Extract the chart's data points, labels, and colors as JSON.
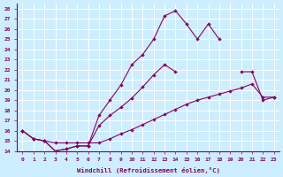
{
  "xlabel": "Windchill (Refroidissement éolien,°C)",
  "bg_color": "#cceeff",
  "grid_color": "#ffffff",
  "line_color": "#880066",
  "xlim": [
    -0.5,
    23.5
  ],
  "ylim": [
    14,
    28.5
  ],
  "yticks": [
    14,
    15,
    16,
    17,
    18,
    19,
    20,
    21,
    22,
    23,
    24,
    25,
    26,
    27,
    28
  ],
  "xticks": [
    0,
    1,
    2,
    3,
    4,
    5,
    6,
    7,
    8,
    9,
    10,
    11,
    12,
    13,
    14,
    15,
    16,
    17,
    18,
    19,
    20,
    21,
    22,
    23
  ],
  "lA_x": [
    0,
    1,
    2,
    3,
    4,
    5,
    6,
    7,
    8,
    9,
    10,
    11,
    12,
    13,
    14,
    15,
    16,
    17,
    18,
    19,
    20,
    21,
    22,
    23
  ],
  "lA_y": [
    16.0,
    15.2,
    15.0,
    14.8,
    14.8,
    14.8,
    14.8,
    14.8,
    15.2,
    15.7,
    16.1,
    16.6,
    17.1,
    17.6,
    18.1,
    18.6,
    19.0,
    19.3,
    19.6,
    19.9,
    20.2,
    20.6,
    19.3,
    19.3
  ],
  "lB_x": [
    0,
    1,
    2,
    3,
    4,
    5,
    6,
    7,
    8,
    9,
    10,
    11,
    12,
    13,
    14,
    15,
    16,
    17,
    18,
    19,
    20,
    21,
    22,
    23
  ],
  "lB_y": [
    16.0,
    15.2,
    15.0,
    14.0,
    14.2,
    14.5,
    14.5,
    16.5,
    17.5,
    18.3,
    19.2,
    20.3,
    21.5,
    22.5,
    21.8,
    null,
    null,
    null,
    null,
    null,
    21.8,
    21.8,
    19.0,
    19.3
  ],
  "lC_x": [
    0,
    1,
    2,
    3,
    4,
    5,
    6,
    7,
    8,
    9,
    10,
    11,
    12,
    13,
    14,
    15,
    16,
    17,
    18
  ],
  "lC_y": [
    16.0,
    15.2,
    15.0,
    14.0,
    14.2,
    14.5,
    14.5,
    17.5,
    19.0,
    20.5,
    22.5,
    23.5,
    25.0,
    27.3,
    27.8,
    26.5,
    25.0,
    26.5,
    25.0
  ]
}
